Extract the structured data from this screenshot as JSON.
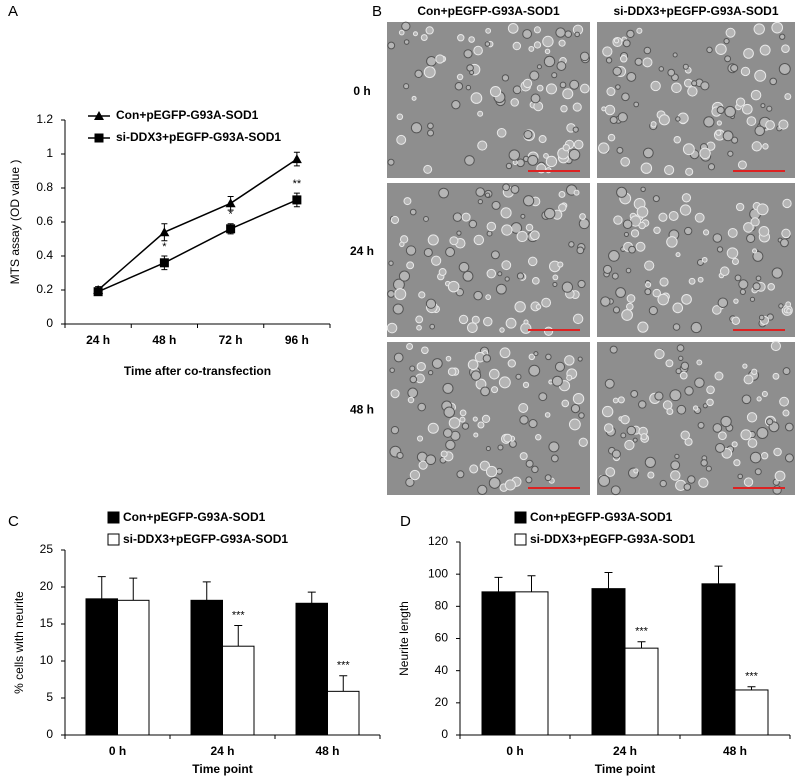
{
  "chart_data": [
    {
      "panel": "A",
      "type": "line",
      "y_label": "MTS assay (OD value )",
      "x_label": "Time after co-transfection",
      "categories": [
        "24 h",
        "48 h",
        "72 h",
        "96 h"
      ],
      "series": [
        {
          "name": "Con+pEGFP-G93A-SOD1",
          "color": "#000000",
          "marker": "triangle",
          "values": [
            0.2,
            0.54,
            0.71,
            0.97
          ],
          "errors": [
            0.02,
            0.05,
            0.04,
            0.04
          ],
          "annotations": [
            null,
            null,
            null,
            null
          ]
        },
        {
          "name": "si-DDX3+pEGFP-G93A-SOD1",
          "color": "#000000",
          "marker": "square",
          "values": [
            0.19,
            0.36,
            0.56,
            0.73
          ],
          "errors": [
            0.02,
            0.04,
            0.03,
            0.04
          ],
          "annotations": [
            null,
            "*",
            "*",
            "**"
          ]
        }
      ],
      "ylim": [
        0,
        1.2
      ],
      "yticks": [
        0,
        0.2,
        0.4,
        0.6,
        0.8,
        1,
        1.2
      ]
    },
    {
      "panel": "B",
      "type": "image-grid",
      "columns": [
        "Con+pEGFP-G93A-SOD1",
        "si-DDX3+pEGFP-G93A-SOD1"
      ],
      "rows": [
        "0 h",
        "24 h",
        "48 h"
      ]
    },
    {
      "panel": "C",
      "type": "bar",
      "y_label": "% cells with neurite",
      "x_label": "Time point",
      "categories": [
        "0 h",
        "24 h",
        "48 h"
      ],
      "series": [
        {
          "name": "Con+pEGFP-G93A-SOD1",
          "color": "#000000",
          "values": [
            18.4,
            18.2,
            17.8
          ],
          "errors": [
            3,
            2.5,
            1.5
          ],
          "annotations": [
            null,
            null,
            null
          ]
        },
        {
          "name": "si-DDX3+pEGFP-G93A-SOD1",
          "color": "#ffffff",
          "values": [
            18.2,
            12,
            5.9
          ],
          "errors": [
            3,
            2.8,
            2.1
          ],
          "annotations": [
            null,
            "***",
            "***"
          ]
        }
      ],
      "ylim": [
        0,
        25
      ],
      "yticks": [
        0,
        5,
        10,
        15,
        20,
        25
      ]
    },
    {
      "panel": "D",
      "type": "bar",
      "y_label": "Neurite length",
      "x_label": "Time point",
      "categories": [
        "0 h",
        "24 h",
        "48 h"
      ],
      "series": [
        {
          "name": "Con+pEGFP-G93A-SOD1",
          "color": "#000000",
          "values": [
            89,
            91,
            94
          ],
          "errors": [
            9,
            10,
            11
          ],
          "annotations": [
            null,
            null,
            null
          ]
        },
        {
          "name": "si-DDX3+pEGFP-G93A-SOD1",
          "color": "#ffffff",
          "values": [
            89,
            54,
            28
          ],
          "errors": [
            10,
            4,
            2
          ],
          "annotations": [
            null,
            "***",
            "***"
          ]
        }
      ],
      "ylim": [
        0,
        120
      ],
      "yticks": [
        0,
        20,
        40,
        60,
        80,
        100,
        120
      ]
    }
  ]
}
